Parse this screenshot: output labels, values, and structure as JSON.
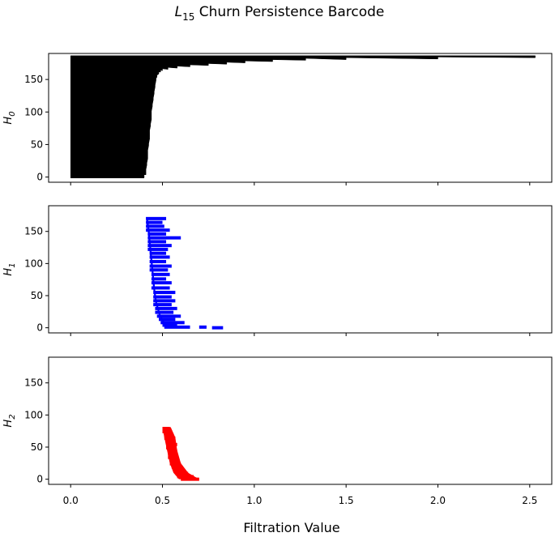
{
  "chart_data": {
    "type": "barcode",
    "title": {
      "main": "L",
      "sub": "15",
      "rest": " Churn Persistence Barcode"
    },
    "xlabel": "Filtration Value",
    "xlim": [
      -0.12,
      2.62
    ],
    "xticks": [
      "0.0",
      "0.5",
      "1.0",
      "1.5",
      "2.0",
      "2.5"
    ],
    "xtick_values": [
      0,
      0.5,
      1.0,
      1.5,
      2.0,
      2.5
    ],
    "yticks": [
      "0",
      "50",
      "100",
      "150"
    ],
    "ytick_values": [
      0,
      50,
      100,
      150
    ],
    "ylim": [
      -8,
      190
    ],
    "grid": false,
    "panels": [
      {
        "ylabel": {
          "main": "H",
          "sub": "0"
        },
        "color": "#000000",
        "bars": [
          {
            "birth": 0,
            "death_by_index": [
              [
                0,
                0.4
              ],
              [
                2,
                0.4
              ],
              [
                5,
                0.41
              ],
              [
                10,
                0.41
              ],
              [
                20,
                0.415
              ],
              [
                30,
                0.42
              ],
              [
                40,
                0.42
              ],
              [
                50,
                0.425
              ],
              [
                60,
                0.43
              ],
              [
                70,
                0.43
              ],
              [
                80,
                0.435
              ],
              [
                90,
                0.44
              ],
              [
                100,
                0.44
              ],
              [
                110,
                0.445
              ],
              [
                120,
                0.45
              ],
              [
                130,
                0.455
              ],
              [
                140,
                0.46
              ],
              [
                150,
                0.465
              ],
              [
                155,
                0.47
              ],
              [
                160,
                0.48
              ],
              [
                163,
                0.49
              ],
              [
                165,
                0.5
              ],
              [
                167,
                0.53
              ],
              [
                169,
                0.58
              ],
              [
                171,
                0.65
              ],
              [
                173,
                0.75
              ],
              [
                175,
                0.85
              ],
              [
                177,
                0.95
              ],
              [
                179,
                1.1
              ],
              [
                181,
                1.28
              ],
              [
                182,
                1.5
              ],
              [
                183,
                2.0
              ],
              [
                185,
                2.53
              ]
            ]
          }
        ]
      },
      {
        "ylabel": {
          "main": "H",
          "sub": "1"
        },
        "color": "#0000ff",
        "bars": [
          {
            "b": 0.51,
            "d": 0.65,
            "i": 1
          },
          {
            "b": 0.7,
            "d": 0.74,
            "i": 1
          },
          {
            "b": 0.77,
            "d": 0.83,
            "i": 0
          },
          {
            "b": 0.5,
            "d": 0.58,
            "i": 4
          },
          {
            "b": 0.49,
            "d": 0.62,
            "i": 8
          },
          {
            "b": 0.48,
            "d": 0.57,
            "i": 13
          },
          {
            "b": 0.47,
            "d": 0.6,
            "i": 18
          },
          {
            "b": 0.46,
            "d": 0.56,
            "i": 24
          },
          {
            "b": 0.46,
            "d": 0.58,
            "i": 30
          },
          {
            "b": 0.45,
            "d": 0.55,
            "i": 36
          },
          {
            "b": 0.45,
            "d": 0.57,
            "i": 42
          },
          {
            "b": 0.45,
            "d": 0.55,
            "i": 48
          },
          {
            "b": 0.45,
            "d": 0.57,
            "i": 55
          },
          {
            "b": 0.44,
            "d": 0.54,
            "i": 62
          },
          {
            "b": 0.44,
            "d": 0.55,
            "i": 70
          },
          {
            "b": 0.44,
            "d": 0.52,
            "i": 76
          },
          {
            "b": 0.44,
            "d": 0.54,
            "i": 83
          },
          {
            "b": 0.43,
            "d": 0.53,
            "i": 90
          },
          {
            "b": 0.43,
            "d": 0.55,
            "i": 96
          },
          {
            "b": 0.43,
            "d": 0.52,
            "i": 103
          },
          {
            "b": 0.43,
            "d": 0.54,
            "i": 110
          },
          {
            "b": 0.43,
            "d": 0.52,
            "i": 116
          },
          {
            "b": 0.42,
            "d": 0.53,
            "i": 122
          },
          {
            "b": 0.42,
            "d": 0.55,
            "i": 128
          },
          {
            "b": 0.42,
            "d": 0.52,
            "i": 134
          },
          {
            "b": 0.42,
            "d": 0.6,
            "i": 140
          },
          {
            "b": 0.42,
            "d": 0.52,
            "i": 146
          },
          {
            "b": 0.41,
            "d": 0.54,
            "i": 152
          },
          {
            "b": 0.41,
            "d": 0.51,
            "i": 158
          },
          {
            "b": 0.41,
            "d": 0.5,
            "i": 164
          },
          {
            "b": 0.41,
            "d": 0.52,
            "i": 170
          }
        ],
        "trend": [
          [
            0,
            0.55
          ],
          [
            10,
            0.51
          ],
          [
            20,
            0.49
          ],
          [
            40,
            0.47
          ],
          [
            60,
            0.46
          ],
          [
            90,
            0.45
          ],
          [
            120,
            0.44
          ],
          [
            150,
            0.43
          ],
          [
            172,
            0.42
          ]
        ],
        "trend_start": [
          [
            0,
            0.53
          ],
          [
            10,
            0.5
          ],
          [
            20,
            0.48
          ],
          [
            40,
            0.46
          ],
          [
            60,
            0.45
          ],
          [
            90,
            0.44
          ],
          [
            120,
            0.43
          ],
          [
            150,
            0.42
          ],
          [
            172,
            0.41
          ]
        ]
      },
      {
        "ylabel": {
          "main": "H",
          "sub": "2"
        },
        "color": "#ff0000",
        "bars": [
          {
            "b": 0.6,
            "d": 0.7,
            "i": 0
          },
          {
            "b": 0.58,
            "d": 0.67,
            "i": 4
          },
          {
            "b": 0.57,
            "d": 0.64,
            "i": 9
          },
          {
            "b": 0.56,
            "d": 0.62,
            "i": 14
          },
          {
            "b": 0.55,
            "d": 0.61,
            "i": 19
          },
          {
            "b": 0.54,
            "d": 0.6,
            "i": 24
          },
          {
            "b": 0.54,
            "d": 0.59,
            "i": 29
          },
          {
            "b": 0.53,
            "d": 0.58,
            "i": 34
          },
          {
            "b": 0.53,
            "d": 0.57,
            "i": 39
          },
          {
            "b": 0.53,
            "d": 0.58,
            "i": 44
          },
          {
            "b": 0.52,
            "d": 0.57,
            "i": 49
          },
          {
            "b": 0.52,
            "d": 0.58,
            "i": 54
          },
          {
            "b": 0.52,
            "d": 0.56,
            "i": 59
          },
          {
            "b": 0.51,
            "d": 0.57,
            "i": 64
          },
          {
            "b": 0.51,
            "d": 0.56,
            "i": 69
          },
          {
            "b": 0.5,
            "d": 0.55,
            "i": 74
          },
          {
            "b": 0.5,
            "d": 0.54,
            "i": 79
          }
        ],
        "trend_start": [
          [
            0,
            0.59
          ],
          [
            10,
            0.56
          ],
          [
            25,
            0.54
          ],
          [
            45,
            0.525
          ],
          [
            65,
            0.51
          ],
          [
            81,
            0.5
          ]
        ],
        "trend": [
          [
            0,
            0.7
          ],
          [
            10,
            0.64
          ],
          [
            25,
            0.6
          ],
          [
            45,
            0.58
          ],
          [
            65,
            0.57
          ],
          [
            81,
            0.545
          ]
        ]
      }
    ]
  }
}
